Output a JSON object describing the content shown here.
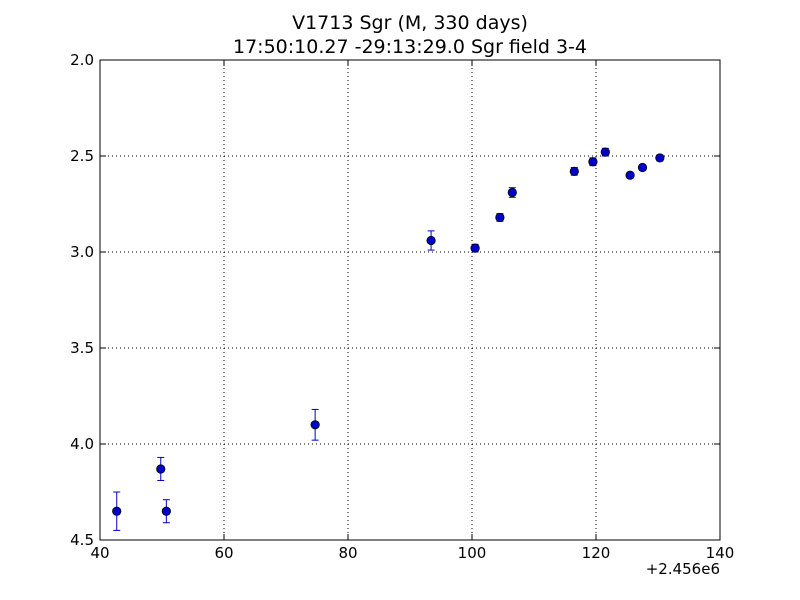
{
  "chart_data": {
    "type": "scatter",
    "title": "V1713 Sgr  (M, 330 days)",
    "subtitle": "17:50:10.27 -29:13:29.0 Sgr field 3-4",
    "xlabel": "",
    "ylabel": "",
    "x_offset_label": "+2.456e6",
    "xlim": [
      40,
      140
    ],
    "ylim": [
      4.5,
      2.0
    ],
    "y_inverted": true,
    "grid": true,
    "x_ticks": [
      "40",
      "60",
      "80",
      "100",
      "120",
      "140"
    ],
    "x_tick_values": [
      40,
      60,
      80,
      100,
      120,
      140
    ],
    "y_ticks": [
      "2.0",
      "2.5",
      "3.0",
      "3.5",
      "4.0",
      "4.5"
    ],
    "y_tick_values": [
      2.0,
      2.5,
      3.0,
      3.5,
      4.0,
      4.5
    ],
    "series": [
      {
        "color": "#0000cc",
        "points": [
          {
            "x": 42.7,
            "y": 4.35,
            "err": 0.1
          },
          {
            "x": 49.8,
            "y": 4.13,
            "err": 0.06
          },
          {
            "x": 50.7,
            "y": 4.35,
            "err": 0.06
          },
          {
            "x": 74.7,
            "y": 3.9,
            "err": 0.08
          },
          {
            "x": 93.4,
            "y": 2.94,
            "err": 0.05
          },
          {
            "x": 100.5,
            "y": 2.98,
            "err": 0.02
          },
          {
            "x": 104.5,
            "y": 2.82,
            "err": 0.02
          },
          {
            "x": 106.5,
            "y": 2.69,
            "err": 0.025
          },
          {
            "x": 116.5,
            "y": 2.58,
            "err": 0.02
          },
          {
            "x": 119.5,
            "y": 2.53,
            "err": 0.02
          },
          {
            "x": 121.5,
            "y": 2.48,
            "err": 0.02
          },
          {
            "x": 125.5,
            "y": 2.6,
            "err": 0.015
          },
          {
            "x": 127.5,
            "y": 2.56,
            "err": 0.015
          },
          {
            "x": 130.3,
            "y": 2.51,
            "err": 0.015
          }
        ]
      }
    ]
  }
}
